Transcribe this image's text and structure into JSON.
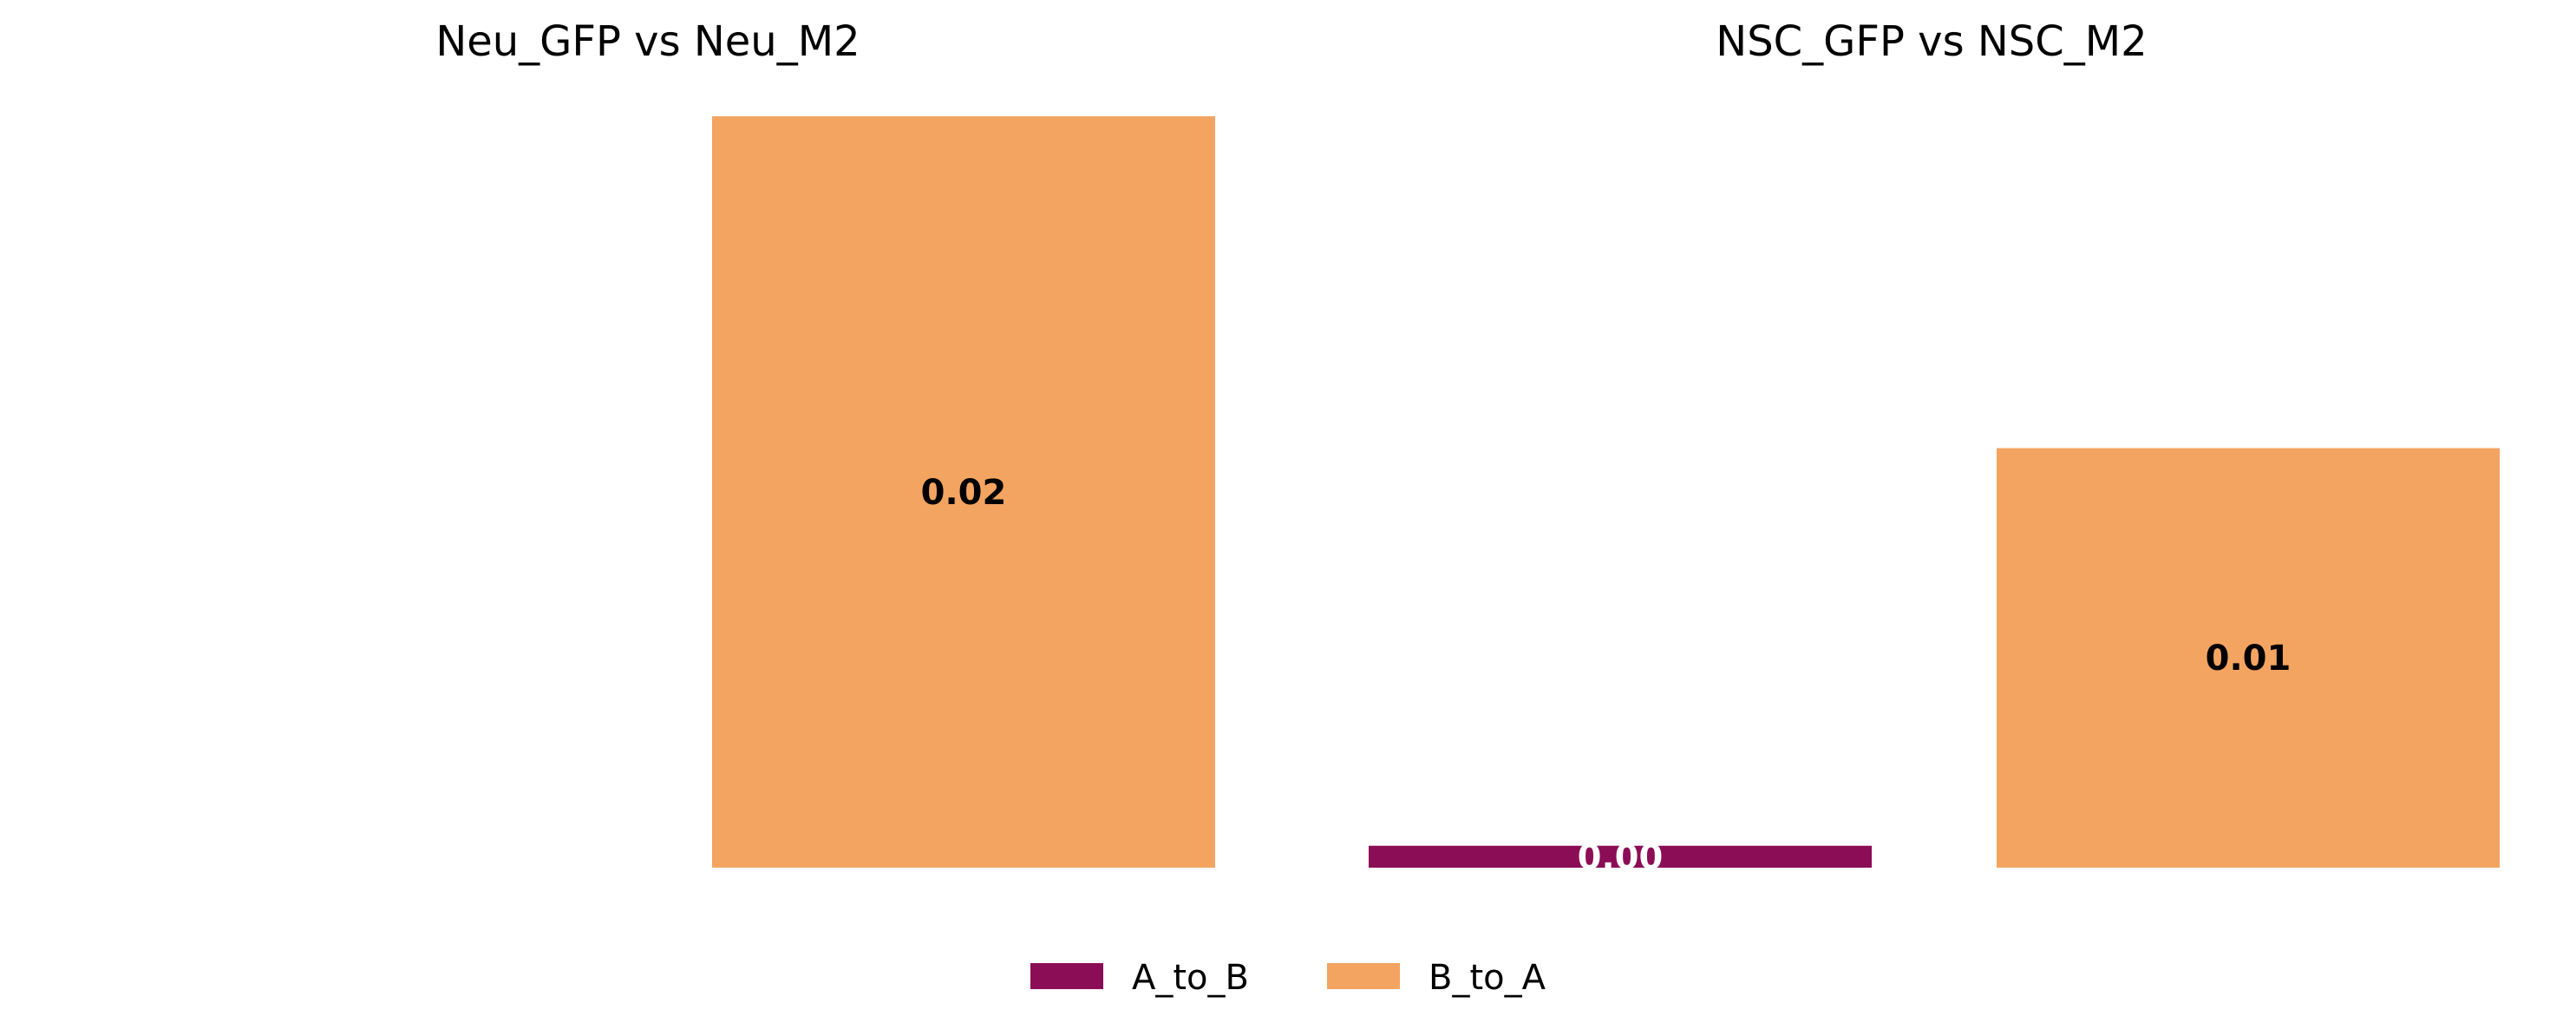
{
  "chart_data": [
    {
      "type": "bar",
      "title": "Neu_GFP vs Neu_M2",
      "xlabel": "",
      "ylabel": "",
      "ylim": [
        0,
        0.024
      ],
      "grid": false,
      "series": [
        {
          "name": "A_to_B",
          "color": "#8b0d55",
          "values": [
            null
          ]
        },
        {
          "name": "B_to_A",
          "color": "#f3a461",
          "values": [
            0.024
          ],
          "labels": [
            "0.02"
          ]
        }
      ]
    },
    {
      "type": "bar",
      "title": "NSC_GFP vs NSC_M2",
      "xlabel": "",
      "ylabel": "",
      "ylim": [
        0,
        0.024
      ],
      "grid": false,
      "series": [
        {
          "name": "A_to_B",
          "color": "#8b0d55",
          "values": [
            0.0007
          ],
          "labels": [
            "0.00"
          ]
        },
        {
          "name": "B_to_A",
          "color": "#f3a461",
          "values": [
            0.0134
          ],
          "labels": [
            "0.01"
          ]
        }
      ]
    }
  ],
  "legend": {
    "placement": "bottom-center",
    "items": [
      {
        "label": "A_to_B",
        "color": "#8b0d55"
      },
      {
        "label": "B_to_A",
        "color": "#f3a461"
      }
    ]
  },
  "label_colors": {
    "A_to_B": "#ffffff",
    "B_to_A": "#000000"
  }
}
